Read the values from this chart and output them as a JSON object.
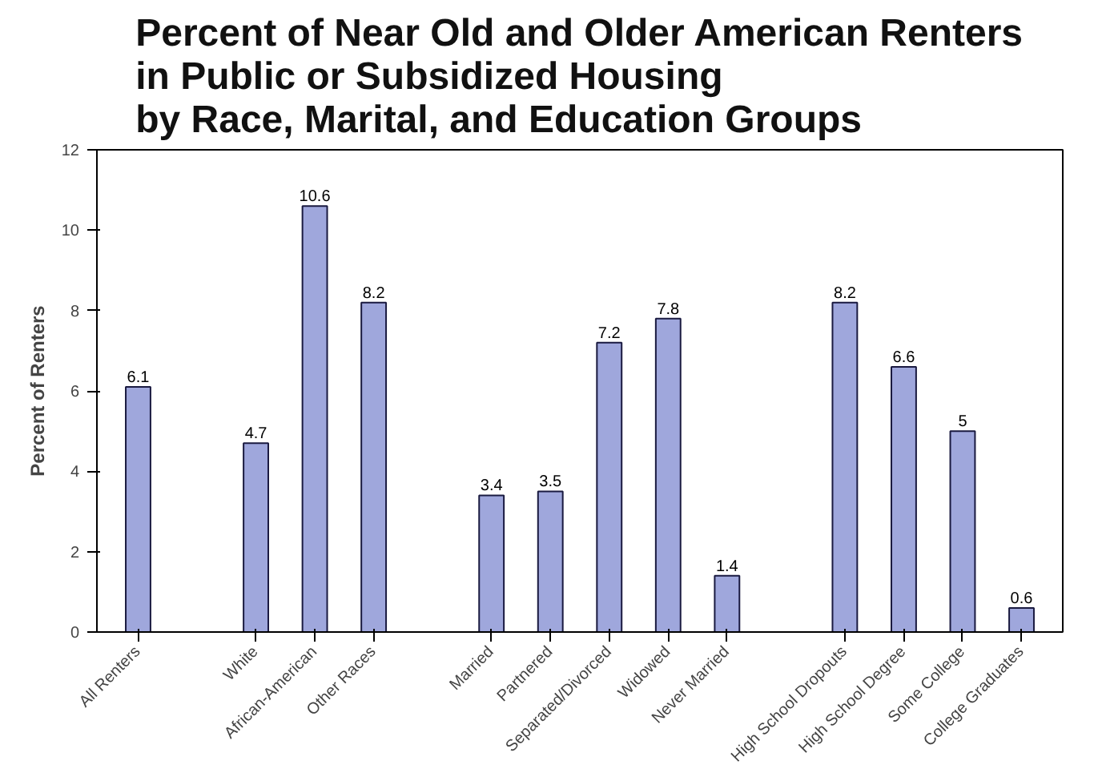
{
  "chart_data": {
    "type": "bar",
    "title": "Percent of Near Old and Older American Renters\nin Public or Subsidized Housing\nby Race, Marital, and Education Groups",
    "ylabel": "Percent of Renters",
    "categories": [
      "All Renters",
      null,
      "White",
      "African-American",
      "Other Races",
      null,
      "Married",
      "Partnered",
      "Separated/Divorced",
      "Widowed",
      "Never Married",
      null,
      "High School Dropouts",
      "High School Degree",
      "Some College",
      "College Graduates"
    ],
    "values": [
      6.1,
      null,
      4.7,
      10.6,
      8.2,
      null,
      3.4,
      3.5,
      7.2,
      7.8,
      1.4,
      null,
      8.2,
      6.6,
      5,
      0.6
    ],
    "color": "#9fa7dc",
    "ylim": [
      0,
      12
    ],
    "yticks": [
      0,
      2,
      4,
      6,
      8,
      10,
      12
    ],
    "grid": false,
    "data_labels": true
  }
}
